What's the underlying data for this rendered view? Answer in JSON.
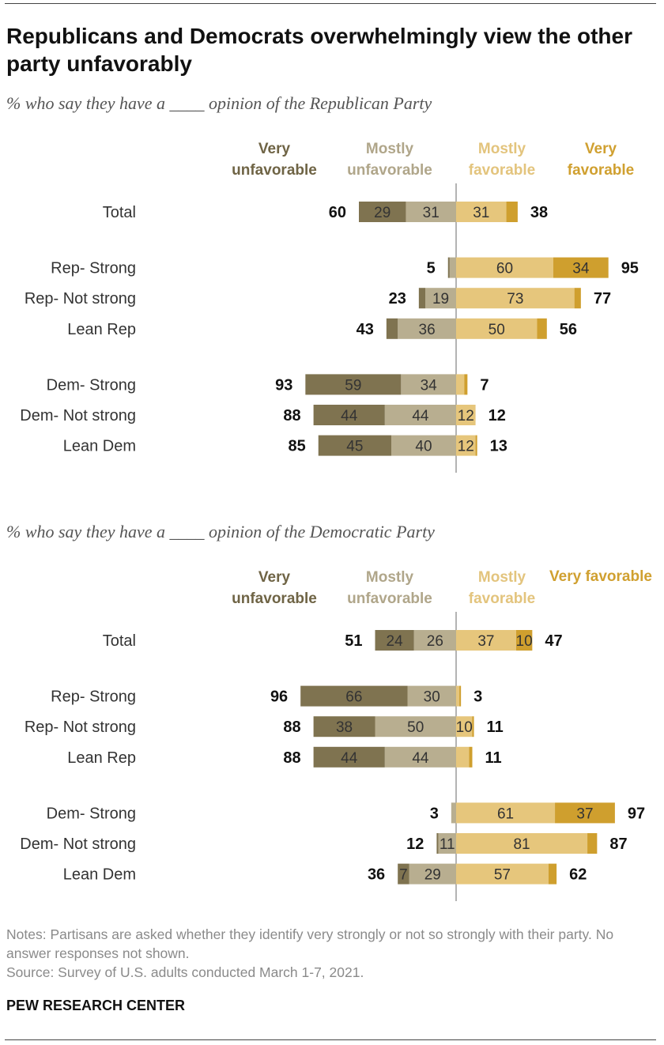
{
  "title": "Republicans and Democrats overwhelmingly view the other party unfavorably",
  "notes": "Notes: Partisans are asked whether they identify very strongly or not so strongly with their party. No answer responses not shown.",
  "source": "Source: Survey of U.S. adults conducted March 1-7, 2021.",
  "brand": "PEW RESEARCH CENTER",
  "colors": {
    "very_unfavorable": "#7f7350",
    "mostly_unfavorable": "#b8ae90",
    "mostly_favorable": "#e6c67c",
    "very_favorable": "#cf9f2e",
    "legend_very_unfavorable": "#6f6445",
    "legend_mostly_unfavorable": "#b0a68a",
    "legend_mostly_favorable": "#e3c47d",
    "legend_very_favorable": "#d0a030"
  },
  "chart_data": [
    {
      "type": "bar",
      "subtitle": "% who say they have a ____ opinion of the Republican Party",
      "legend": {
        "very_unfavorable": [
          "Very",
          "unfavorable"
        ],
        "mostly_unfavorable": [
          "Mostly",
          "unfavorable"
        ],
        "mostly_favorable": [
          "Mostly",
          "favorable"
        ],
        "very_favorable": [
          "Very",
          "favorable"
        ]
      },
      "categories": [
        "Total",
        "Rep- Strong",
        "Rep- Not strong",
        "Lean Rep",
        "Dem- Strong",
        "Dem- Not strong",
        "Lean Dem"
      ],
      "groups": [
        1,
        2,
        2,
        2,
        3,
        3,
        3
      ],
      "rows": [
        {
          "very_unfavorable": 29,
          "mostly_unfavorable": 31,
          "mostly_favorable": 31,
          "very_favorable": 7,
          "net_unfavorable": 60,
          "net_favorable": 38
        },
        {
          "very_unfavorable": 1,
          "mostly_unfavorable": 4,
          "mostly_favorable": 60,
          "very_favorable": 34,
          "net_unfavorable": 5,
          "net_favorable": 95
        },
        {
          "very_unfavorable": 4,
          "mostly_unfavorable": 19,
          "mostly_favorable": 73,
          "very_favorable": 4,
          "net_unfavorable": 23,
          "net_favorable": 77
        },
        {
          "very_unfavorable": 7,
          "mostly_unfavorable": 36,
          "mostly_favorable": 50,
          "very_favorable": 6,
          "net_unfavorable": 43,
          "net_favorable": 56
        },
        {
          "very_unfavorable": 59,
          "mostly_unfavorable": 34,
          "mostly_favorable": 5,
          "very_favorable": 2,
          "net_unfavorable": 93,
          "net_favorable": 7
        },
        {
          "very_unfavorable": 44,
          "mostly_unfavorable": 44,
          "mostly_favorable": 12,
          "very_favorable": 0,
          "net_unfavorable": 88,
          "net_favorable": 12
        },
        {
          "very_unfavorable": 45,
          "mostly_unfavorable": 40,
          "mostly_favorable": 12,
          "very_favorable": 1,
          "net_unfavorable": 85,
          "net_favorable": 13
        }
      ],
      "shown_labels": [
        {
          "very_unfavorable": "29",
          "mostly_unfavorable": "31",
          "mostly_favorable": "31",
          "very_favorable": ""
        },
        {
          "very_unfavorable": "",
          "mostly_unfavorable": "",
          "mostly_favorable": "60",
          "very_favorable": "34"
        },
        {
          "very_unfavorable": "",
          "mostly_unfavorable": "19",
          "mostly_favorable": "73",
          "very_favorable": ""
        },
        {
          "very_unfavorable": "",
          "mostly_unfavorable": "36",
          "mostly_favorable": "50",
          "very_favorable": ""
        },
        {
          "very_unfavorable": "59",
          "mostly_unfavorable": "34",
          "mostly_favorable": "",
          "very_favorable": ""
        },
        {
          "very_unfavorable": "44",
          "mostly_unfavorable": "44",
          "mostly_favorable": "12",
          "very_favorable": ""
        },
        {
          "very_unfavorable": "45",
          "mostly_unfavorable": "40",
          "mostly_favorable": "12",
          "very_favorable": ""
        }
      ]
    },
    {
      "type": "bar",
      "subtitle": "% who say they have a ____ opinion of the Democratic Party",
      "legend": {
        "very_unfavorable": [
          "Very",
          "unfavorable"
        ],
        "mostly_unfavorable": [
          "Mostly",
          "unfavorable"
        ],
        "mostly_favorable": [
          "Mostly",
          "favorable"
        ],
        "very_favorable": [
          "Very favorable"
        ]
      },
      "categories": [
        "Total",
        "Rep- Strong",
        "Rep- Not strong",
        "Lean Rep",
        "Dem- Strong",
        "Dem- Not strong",
        "Lean Dem"
      ],
      "groups": [
        1,
        2,
        2,
        2,
        3,
        3,
        3
      ],
      "rows": [
        {
          "very_unfavorable": 24,
          "mostly_unfavorable": 26,
          "mostly_favorable": 37,
          "very_favorable": 10,
          "net_unfavorable": 51,
          "net_favorable": 47
        },
        {
          "very_unfavorable": 66,
          "mostly_unfavorable": 30,
          "mostly_favorable": 2,
          "very_favorable": 1,
          "net_unfavorable": 96,
          "net_favorable": 3
        },
        {
          "very_unfavorable": 38,
          "mostly_unfavorable": 50,
          "mostly_favorable": 10,
          "very_favorable": 1,
          "net_unfavorable": 88,
          "net_favorable": 11
        },
        {
          "very_unfavorable": 44,
          "mostly_unfavorable": 44,
          "mostly_favorable": 8,
          "very_favorable": 2,
          "net_unfavorable": 88,
          "net_favorable": 11
        },
        {
          "very_unfavorable": 0,
          "mostly_unfavorable": 3,
          "mostly_favorable": 61,
          "very_favorable": 37,
          "net_unfavorable": 3,
          "net_favorable": 97
        },
        {
          "very_unfavorable": 1,
          "mostly_unfavorable": 11,
          "mostly_favorable": 81,
          "very_favorable": 6,
          "net_unfavorable": 12,
          "net_favorable": 87
        },
        {
          "very_unfavorable": 7,
          "mostly_unfavorable": 29,
          "mostly_favorable": 57,
          "very_favorable": 5,
          "net_unfavorable": 36,
          "net_favorable": 62
        }
      ],
      "shown_labels": [
        {
          "very_unfavorable": "24",
          "mostly_unfavorable": "26",
          "mostly_favorable": "37",
          "very_favorable": "10"
        },
        {
          "very_unfavorable": "66",
          "mostly_unfavorable": "30",
          "mostly_favorable": "",
          "very_favorable": ""
        },
        {
          "very_unfavorable": "38",
          "mostly_unfavorable": "50",
          "mostly_favorable": "10",
          "very_favorable": ""
        },
        {
          "very_unfavorable": "44",
          "mostly_unfavorable": "44",
          "mostly_favorable": "",
          "very_favorable": ""
        },
        {
          "very_unfavorable": "",
          "mostly_unfavorable": "",
          "mostly_favorable": "61",
          "very_favorable": "37"
        },
        {
          "very_unfavorable": "",
          "mostly_unfavorable": "11",
          "mostly_favorable": "81",
          "very_favorable": ""
        },
        {
          "very_unfavorable": "7",
          "mostly_unfavorable": "29",
          "mostly_favorable": "57",
          "very_favorable": ""
        }
      ]
    }
  ]
}
